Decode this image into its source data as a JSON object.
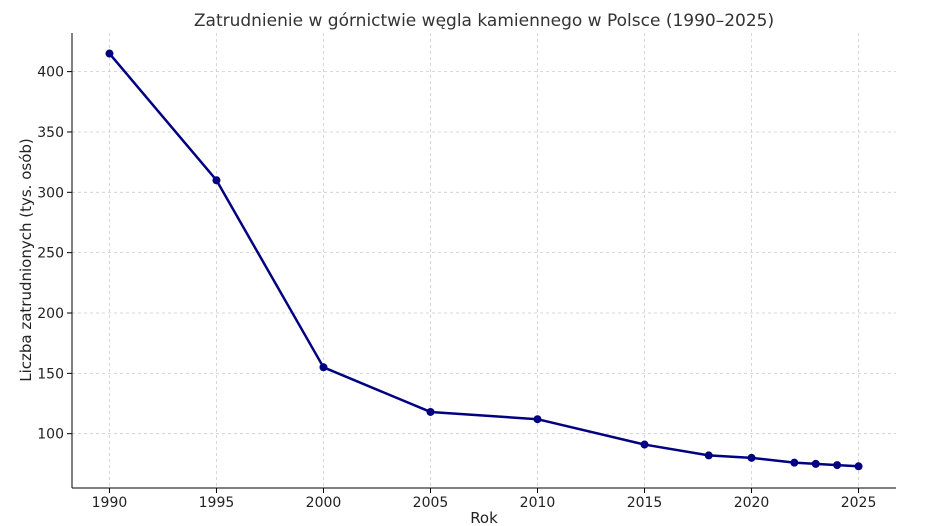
{
  "chart_data": {
    "type": "line",
    "title": "Zatrudnienie w górnictwie węgla kamiennego w Polsce (1990–2025)",
    "xlabel": "Rok",
    "ylabel": "Liczba zatrudnionych (tys. osób)",
    "xlim": [
      1988.25,
      2026.75
    ],
    "ylim": [
      55,
      432
    ],
    "x_ticks": [
      1990,
      1995,
      2000,
      2005,
      2010,
      2015,
      2020,
      2025
    ],
    "y_ticks": [
      100,
      150,
      200,
      250,
      300,
      350,
      400
    ],
    "grid": true,
    "series": [
      {
        "color": "#000080",
        "x": [
          1990,
          1995,
          2000,
          2005,
          2010,
          2015,
          2018,
          2020,
          2022,
          2023,
          2024,
          2025
        ],
        "y": [
          415,
          310,
          155,
          118,
          112,
          91,
          82,
          80,
          76,
          75,
          74,
          73
        ]
      }
    ]
  }
}
